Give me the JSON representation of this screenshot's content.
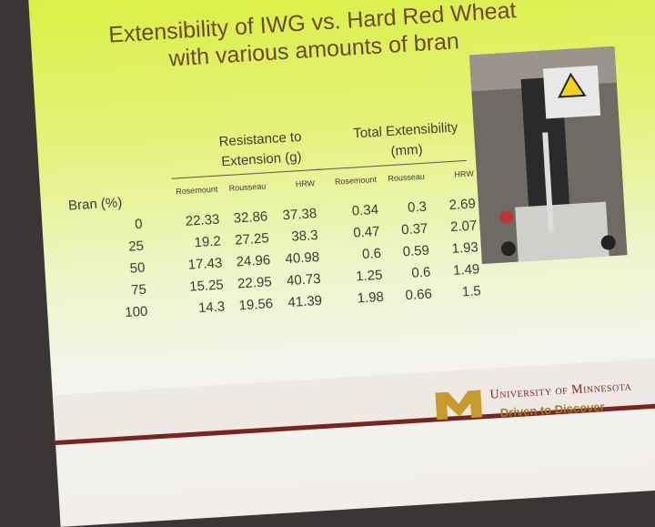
{
  "title_lines": [
    "Extensibility of IWG vs. Hard Red Wheat",
    "with various amounts of bran"
  ],
  "table": {
    "row_header": "Bran (%)",
    "groups": [
      {
        "label_lines": [
          "Resistance to",
          "Extension (g)"
        ],
        "columns": [
          "Rosemount",
          "Rousseau",
          "HRW"
        ]
      },
      {
        "label_lines": [
          "Total Extensibility",
          "(mm)"
        ],
        "columns": [
          "Rosemount",
          "Rousseau",
          "HRW"
        ]
      }
    ],
    "rows": [
      [
        0,
        22.33,
        32.86,
        37.38,
        0.34,
        0.3,
        2.69
      ],
      [
        25,
        19.2,
        27.25,
        38.3,
        0.47,
        0.37,
        2.07
      ],
      [
        50,
        17.43,
        24.96,
        40.98,
        0.6,
        0.59,
        1.93
      ],
      [
        75,
        15.25,
        22.95,
        40.73,
        1.25,
        0.6,
        1.49
      ],
      [
        100,
        14.3,
        19.56,
        41.39,
        1.98,
        0.66,
        1.5
      ]
    ]
  },
  "footer": {
    "university": "University of Minnesota",
    "tagline": "Driven to Discover"
  }
}
